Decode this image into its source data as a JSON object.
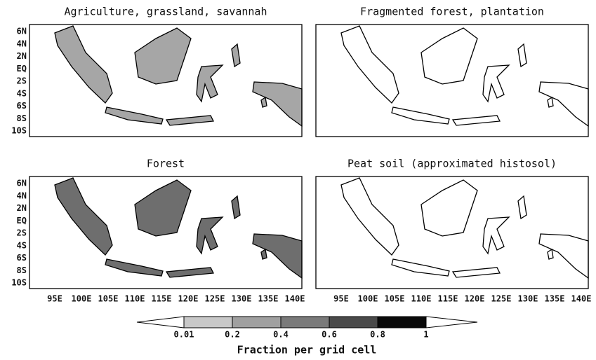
{
  "panels": [
    {
      "title": "Agriculture, grassland, savannah",
      "fill": "#a6a6a6"
    },
    {
      "title": "Fragmented forest, plantation",
      "fill": "#ffffff"
    },
    {
      "title": "Forest",
      "fill": "#6e6e6e"
    },
    {
      "title": "Peat soil (approximated histosol)",
      "fill": "#ffffff"
    }
  ],
  "lat_labels": [
    "6N",
    "4N",
    "2N",
    "EQ",
    "2S",
    "4S",
    "6S",
    "8S",
    "10S"
  ],
  "lon_labels": [
    "95E",
    "100E",
    "105E",
    "110E",
    "115E",
    "120E",
    "125E",
    "130E",
    "135E",
    "140E"
  ],
  "colorbar": {
    "ticks": [
      0.01,
      0.2,
      0.4,
      0.6,
      0.8,
      1
    ],
    "colors": [
      "#ffffff",
      "#c8c8c8",
      "#a0a0a0",
      "#7a7a7a",
      "#4a4a4a",
      "#0a0a0a",
      "#ffffff"
    ],
    "label": "Fraction per grid cell"
  }
}
